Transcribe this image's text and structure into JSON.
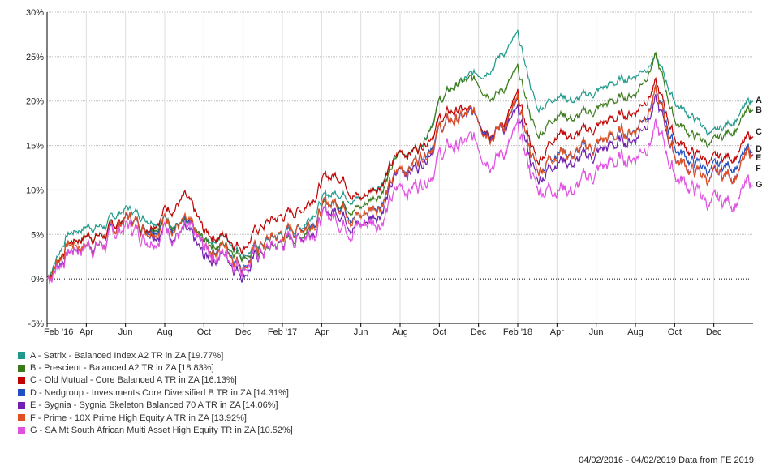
{
  "chart_data": {
    "type": "line",
    "title": "",
    "xlabel": "",
    "ylabel": "",
    "ylim": [
      -5,
      30
    ],
    "yticks": [
      "-5%",
      "0%",
      "5%",
      "10%",
      "15%",
      "20%",
      "25%",
      "30%"
    ],
    "xticks": [
      "Feb '16",
      "Apr",
      "Jun",
      "Aug",
      "Oct",
      "Dec",
      "Feb '17",
      "Apr",
      "Jun",
      "Aug",
      "Oct",
      "Dec",
      "Feb '18",
      "Apr",
      "Jun",
      "Aug",
      "Oct",
      "Dec"
    ],
    "x_months": 37,
    "grid": true,
    "legend_placement": "bottom-left",
    "series": [
      {
        "key": "A",
        "name": "A - Satrix - Balanced Index A2 TR in ZA [19.77%]",
        "color": "#1f9a8a",
        "values": [
          0,
          5,
          6,
          6,
          8,
          7,
          7,
          6,
          4,
          5,
          3,
          4,
          5,
          6,
          9,
          10,
          9,
          11,
          14,
          15,
          20,
          22,
          23,
          25,
          27,
          19,
          21,
          20,
          21,
          22,
          23,
          25,
          20,
          18,
          16,
          18,
          20
        ]
      },
      {
        "key": "B",
        "name": "B - Prescient - Balanced A2 TR in ZA [18.83%]",
        "color": "#3a7a1a",
        "values": [
          0,
          4,
          5,
          5,
          7,
          6,
          7,
          6,
          4,
          4,
          3,
          3,
          4,
          5,
          8,
          9,
          8,
          10,
          14,
          15,
          20,
          22,
          22,
          21,
          23,
          16,
          19,
          18,
          19,
          20,
          21,
          25,
          18,
          16,
          15,
          17,
          19
        ]
      },
      {
        "key": "C",
        "name": "C - Old Mutual - Core Balanced A TR in ZA [16.13%]",
        "color": "#c00000",
        "values": [
          0,
          4,
          5,
          5,
          7,
          6,
          8,
          9,
          5,
          5,
          4,
          6,
          7,
          8,
          11,
          12,
          9,
          11,
          14,
          15,
          18,
          19,
          18,
          17,
          20,
          13,
          17,
          16,
          17,
          18,
          19,
          22,
          16,
          14,
          13,
          14,
          16
        ]
      },
      {
        "key": "D",
        "name": "D - Nedgroup - Investments Core Diversified B TR in ZA [14.31%]",
        "color": "#2050c0",
        "values": [
          0,
          3,
          4,
          4,
          7,
          6,
          7,
          6,
          3,
          4,
          2,
          4,
          5,
          6,
          8,
          9,
          7,
          9,
          12,
          14,
          17,
          18,
          18,
          17,
          19,
          12,
          15,
          14,
          15,
          16,
          17,
          21,
          15,
          13,
          12,
          13,
          14.3
        ]
      },
      {
        "key": "E",
        "name": "E - Sygnia - Sygnia Skeleton Balanced 70 A TR in ZA [14.06%]",
        "color": "#7020b0",
        "values": [
          0,
          3,
          4,
          4,
          7,
          6,
          6,
          5,
          2,
          3,
          1,
          3,
          4,
          5,
          7,
          8,
          6,
          8,
          12,
          13,
          17,
          18,
          18,
          17,
          18,
          11,
          14,
          13,
          14,
          15,
          16,
          20,
          14,
          12,
          11,
          12,
          14
        ]
      },
      {
        "key": "F",
        "name": "F - Prime - 10X Prime High Equity A TR in ZA [13.92%]",
        "color": "#e05020",
        "values": [
          0,
          4,
          4,
          4,
          7,
          6,
          7,
          6,
          3,
          4,
          2,
          4,
          5,
          6,
          8,
          9,
          7,
          9,
          12,
          14,
          17,
          18,
          18,
          17,
          19,
          12,
          15,
          14,
          15,
          16,
          17,
          21,
          14,
          12,
          11,
          12,
          13.9
        ]
      },
      {
        "key": "G",
        "name": "G - SA Mt South African Multi Asset High Equity TR in ZA [10.52%]",
        "color": "#e050e0",
        "values": [
          0,
          3,
          4,
          4,
          6,
          5,
          6,
          5,
          3,
          3,
          2,
          3,
          4,
          5,
          7,
          7,
          6,
          7,
          10,
          11,
          14,
          15,
          15,
          14,
          16,
          10,
          11,
          10,
          12,
          13,
          14,
          17,
          12,
          10,
          8,
          9,
          10.5
        ]
      }
    ]
  },
  "footer": "04/02/2016 - 04/02/2019 Data from FE 2019"
}
